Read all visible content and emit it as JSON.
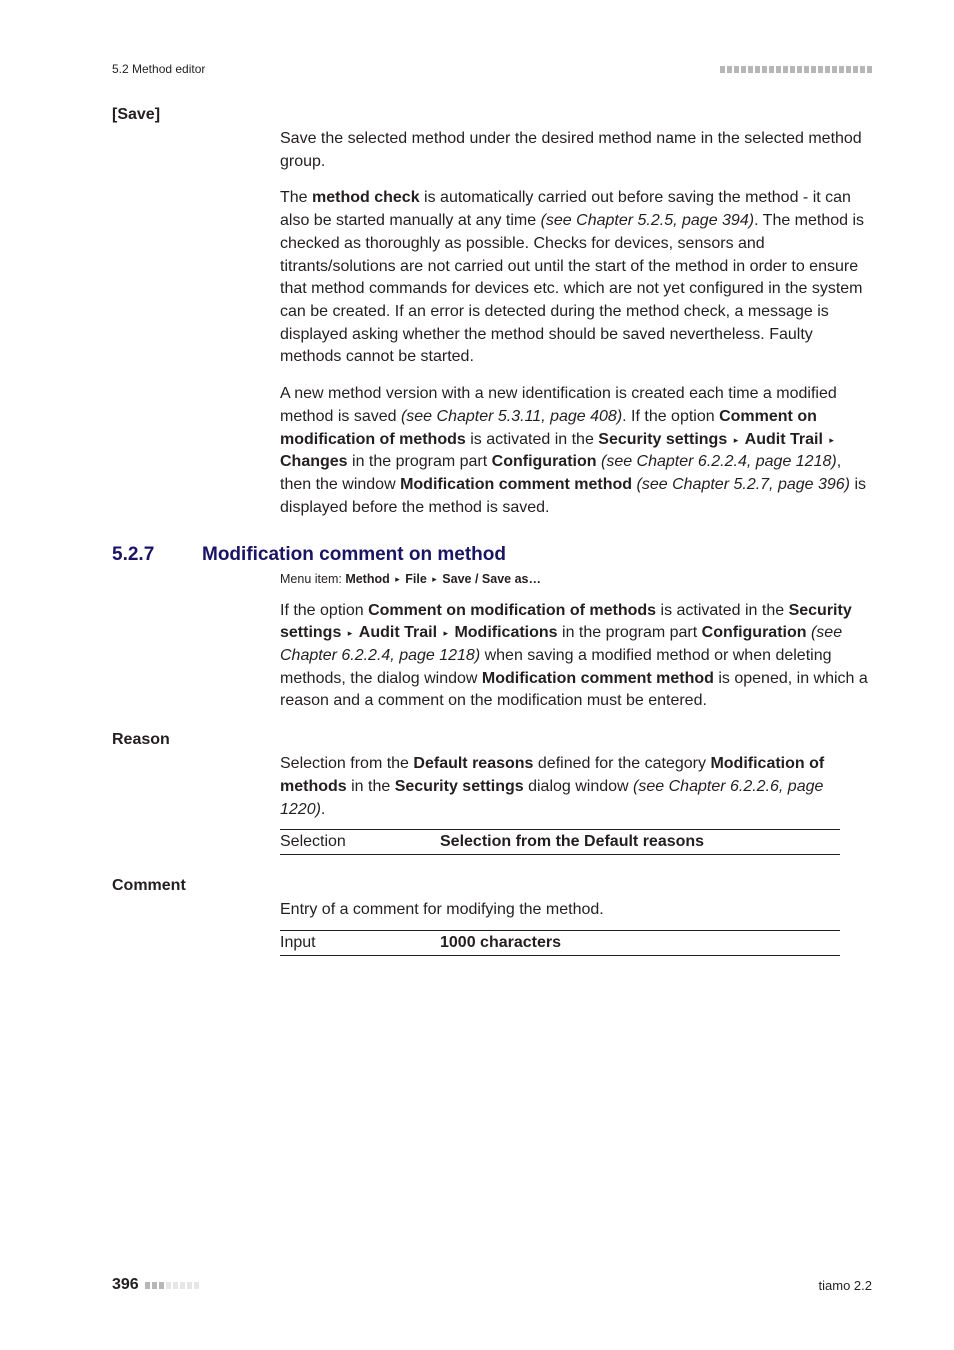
{
  "header": {
    "left": "5.2 Method editor",
    "bar_color": "#b7b7b7",
    "bar_count": 22
  },
  "save": {
    "term": "[Save]",
    "para1": "Save the selected method under the desired method name in the selected method group.",
    "para2_pre": "The ",
    "para2_b1": "method check",
    "para2_mid": " is automatically carried out before saving the method - it can also be started manually at any time ",
    "para2_it": "(see Chapter 5.2.5, page 394)",
    "para2_post": ". The method is checked as thoroughly as possible. Checks for devices, sensors and titrants/solutions are not carried out until the start of the method in order to ensure that method commands for devices etc. which are not yet configured in the system can be created. If an error is detected during the method check, a message is displayed asking whether the method should be saved nevertheless. Faulty methods cannot be started.",
    "para3_a": "A new method version with a new identification is created each time a modified method is saved ",
    "para3_it1": "(see Chapter 5.3.11, page 408)",
    "para3_b": ". If the option ",
    "para3_bold1": "Comment on modification of methods",
    "para3_c": " is activated in the ",
    "para3_bold2": "Security settings",
    "para3_tri1": "▸",
    "para3_bold3": "Audit Trail",
    "para3_tri2": "▸",
    "para3_bold4": "Changes",
    "para3_d": " in the program part ",
    "para3_bold5": "Configuration",
    "para3_e": " ",
    "para3_it2": "(see Chapter 6.2.2.4, page 1218)",
    "para3_f": ", then the window ",
    "para3_bold6": "Modification comment method",
    "para3_g": " ",
    "para3_it3": "(see Chapter 5.2.7, page 396)",
    "para3_h": " is displayed before the method is saved."
  },
  "section": {
    "num": "5.2.7",
    "title": "Modification comment on method",
    "menu_prefix": "Menu item: ",
    "menu_b1": "Method",
    "menu_b2": "File",
    "menu_b3": "Save / Save as…",
    "tri": "▸",
    "para_a": "If the option ",
    "para_bold1": "Comment on modification of methods",
    "para_b": " is activated in the ",
    "para_bold2": "Security settings",
    "para_tri1": "▸",
    "para_bold3": "Audit Trail",
    "para_tri2": "▸",
    "para_bold4": "Modifications",
    "para_c": " in the program part ",
    "para_bold5": "Configuration",
    "para_d": " ",
    "para_it1": "(see Chapter 6.2.2.4, page 1218)",
    "para_e": " when saving a modified method or when deleting methods, the dialog window ",
    "para_bold6": "Modification comment method",
    "para_f": " is opened, in which a reason and a comment on the modification must be entered."
  },
  "reason": {
    "term": "Reason",
    "para_a": "Selection from the ",
    "para_b1": "Default reasons",
    "para_b": " defined for the category ",
    "para_b2": "Modification of methods",
    "para_c": " in the ",
    "para_b3": "Security settings",
    "para_d": " dialog window ",
    "para_it": "(see Chapter 6.2.2.6, page 1220)",
    "para_e": ".",
    "row_label": "Selection",
    "row_value": "Selection from the Default reasons"
  },
  "comment": {
    "term": "Comment",
    "para": "Entry of a comment for modifying the method.",
    "row_label": "Input",
    "row_value": "1000 characters"
  },
  "footer": {
    "page": "396",
    "bar_active": "#b7b7b7",
    "bar_inactive": "#e6e6e6",
    "bar_active_count": 3,
    "bar_total": 8,
    "right": "tiamo 2.2"
  }
}
